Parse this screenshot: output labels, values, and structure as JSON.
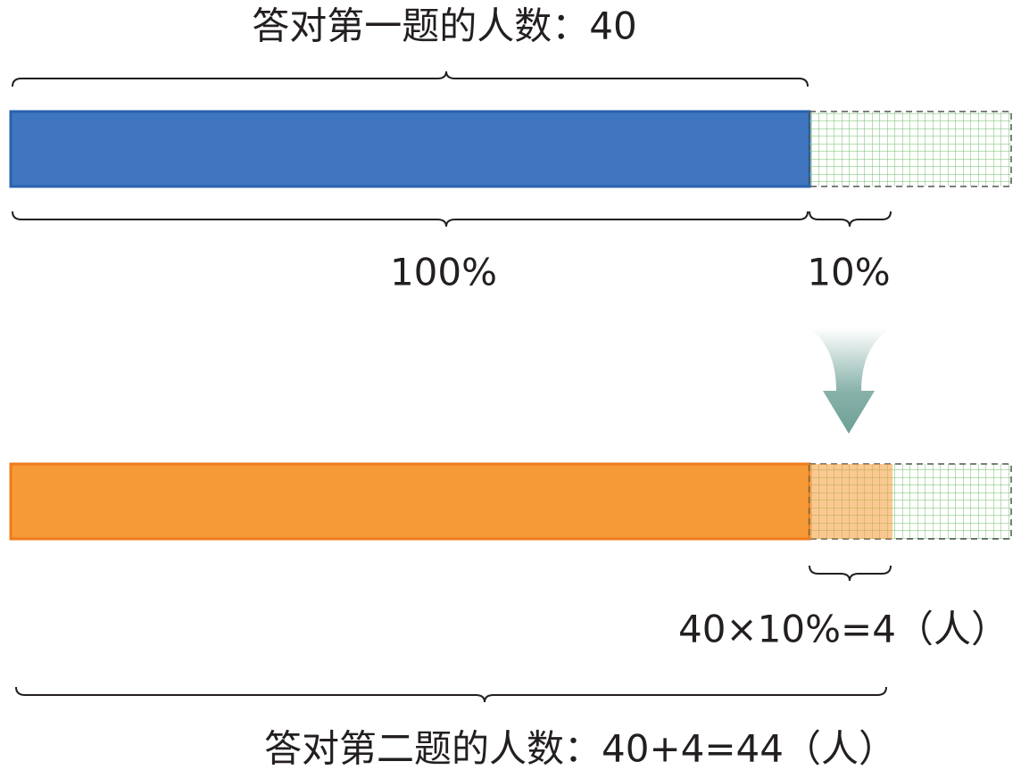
{
  "labels": {
    "top": "答对第一题的人数：40",
    "percent_whole": "100%",
    "percent_part": "10%",
    "increase": "40×10%=4（人）",
    "bottom": "答对第二题的人数：40+4=44（人）"
  }
}
